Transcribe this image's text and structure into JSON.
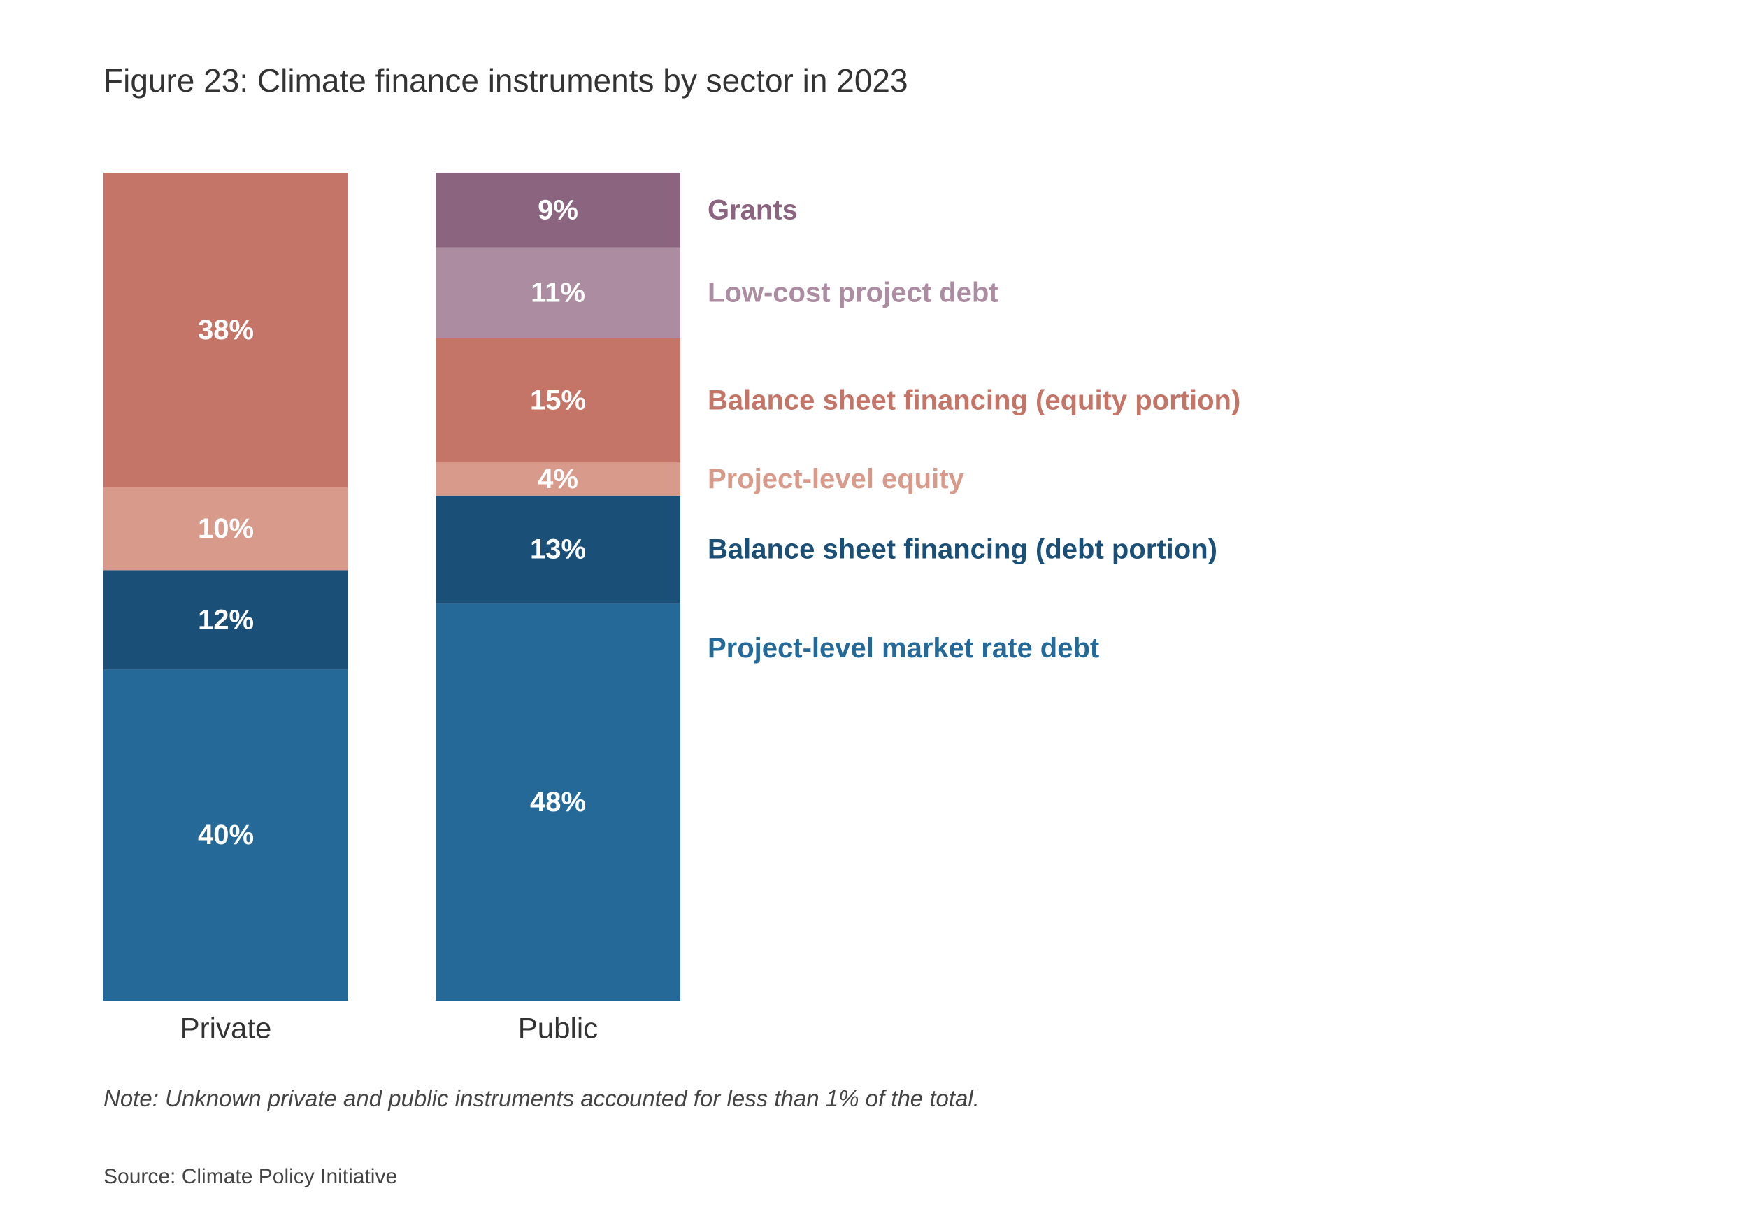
{
  "title": "Figure 23: Climate finance instruments by sector in 2023",
  "note": "Note: Unknown private and public instruments accounted for less than 1% of the total.",
  "source": "Source: Climate Policy Initiative",
  "chart_data": {
    "type": "bar",
    "stacked": true,
    "percent": true,
    "categories": [
      "Private",
      "Public"
    ],
    "series": [
      {
        "name": "Project-level market rate debt",
        "color": "#256999",
        "values": [
          40,
          48
        ],
        "labels": [
          "40%",
          "48%"
        ]
      },
      {
        "name": "Balance sheet financing (debt portion)",
        "color": "#1a4f78",
        "values": [
          12,
          13
        ],
        "labels": [
          "12%",
          "13%"
        ]
      },
      {
        "name": "Project-level equity",
        "color": "#d89b8b",
        "values": [
          10,
          4
        ],
        "labels": [
          "10%",
          "4%"
        ]
      },
      {
        "name": "Balance sheet financing (equity portion)",
        "color": "#c47567",
        "values": [
          38,
          15
        ],
        "labels": [
          "38%",
          "15%"
        ]
      },
      {
        "name": "Low-cost project debt",
        "color": "#ab8ca0",
        "values": [
          0,
          11
        ],
        "labels": [
          "",
          "11%"
        ]
      },
      {
        "name": "Grants",
        "color": "#8b6480",
        "values": [
          0,
          9
        ],
        "labels": [
          "",
          "9%"
        ]
      }
    ],
    "legend": {
      "placement": "right",
      "order": [
        "Grants",
        "Low-cost project debt",
        "Balance sheet financing (equity portion)",
        "Project-level equity",
        "Balance sheet financing (debt portion)",
        "Project-level market rate debt"
      ],
      "colors": {
        "Grants": "#8b6480",
        "Low-cost project debt": "#ab8ca0",
        "Balance sheet financing (equity portion)": "#c47567",
        "Project-level equity": "#d89b8b",
        "Balance sheet financing (debt portion)": "#1a4f78",
        "Project-level market rate debt": "#256999"
      }
    },
    "xlabel": "",
    "ylabel": "",
    "ylim": [
      0,
      100
    ],
    "grid": false
  }
}
